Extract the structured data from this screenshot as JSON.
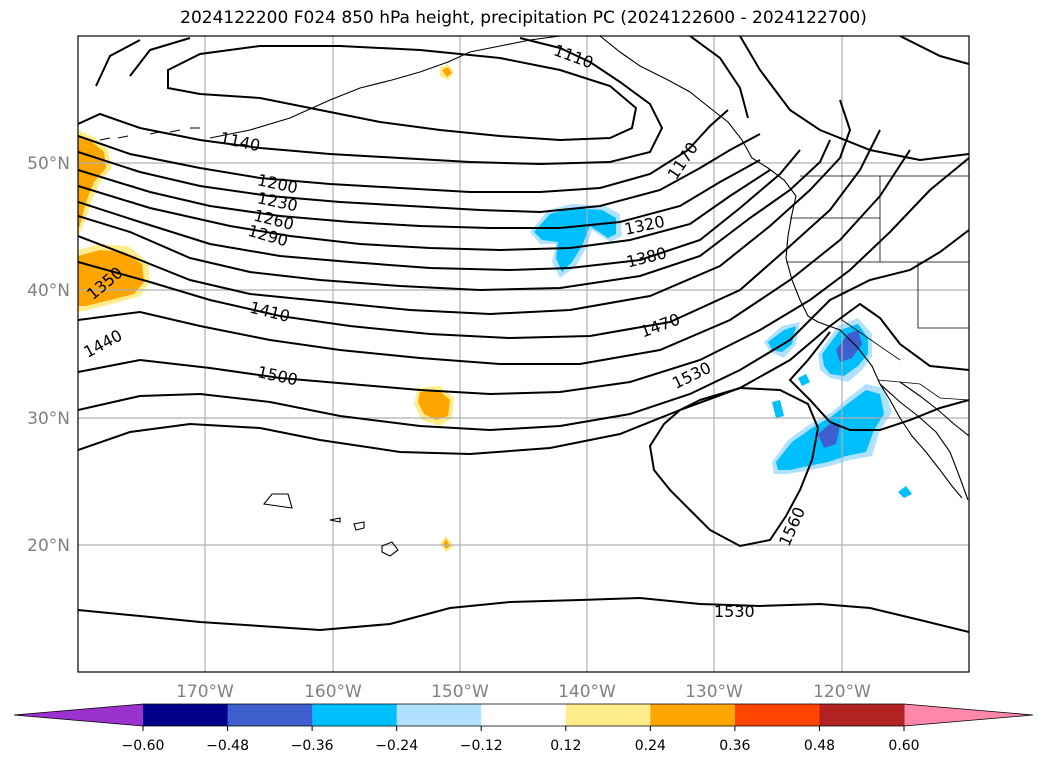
{
  "title": "2024122200 F024 850 hPa height, precipitation PC (2024122600 - 2024122700)",
  "map": {
    "latitude_labels": [
      "50°N",
      "40°N",
      "30°N",
      "20°N"
    ],
    "longitude_labels": [
      "170°W",
      "160°W",
      "150°W",
      "140°W",
      "130°W",
      "120°W"
    ],
    "height_contour_labels": [
      "1110",
      "1140",
      "1170",
      "1200",
      "1230",
      "1260",
      "1290",
      "1320",
      "1350",
      "1380",
      "1410",
      "1440",
      "1470",
      "1500",
      "1530",
      "1560",
      "1530"
    ]
  },
  "colorbar": {
    "tick_labels": [
      "−0.60",
      "−0.48",
      "−0.36",
      "−0.24",
      "−0.12",
      "0.12",
      "0.24",
      "0.36",
      "0.48",
      "0.60"
    ],
    "colors": [
      "#9b32cf",
      "#00008b",
      "#3f5fcf",
      "#00bfff",
      "#b0e2ff",
      "#ffffff",
      "#ffec8b",
      "#ffa500",
      "#ff4500",
      "#b22222",
      "#ff88aa"
    ]
  }
}
